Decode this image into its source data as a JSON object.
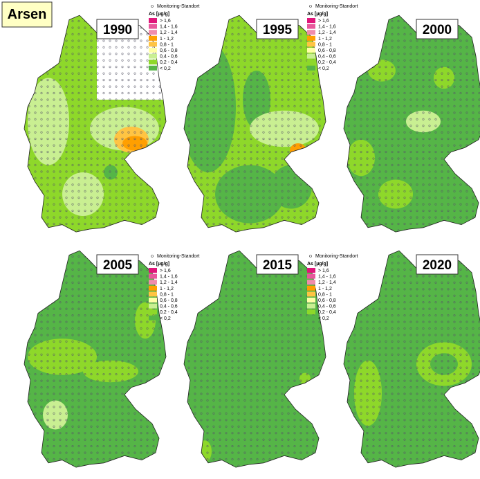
{
  "title": "Arsen",
  "legend": {
    "station": "Monitoring-Standort",
    "unit": "As [µg/g]",
    "classes": [
      {
        "label": "> 1,6",
        "color": "#e0157a"
      },
      {
        "label": "1,4 - 1,6",
        "color": "#e8579c"
      },
      {
        "label": "1,2 - 1,4",
        "color": "#f08cab"
      },
      {
        "label": "1 - 1,2",
        "color": "#ff9f00"
      },
      {
        "label": "0,8 - 1",
        "color": "#ffc443"
      },
      {
        "label": "0,6 - 0,8",
        "color": "#ffffa6"
      },
      {
        "label": "0,4 - 0,6",
        "color": "#c9ef92"
      },
      {
        "label": "0,2 - 0,4",
        "color": "#8ed82a"
      },
      {
        "label": "< 0,2",
        "color": "#55b547"
      }
    ]
  },
  "panels": [
    {
      "year": "1990"
    },
    {
      "year": "1995"
    },
    {
      "year": "2000"
    },
    {
      "year": "2005"
    },
    {
      "year": "2015"
    },
    {
      "year": "2020"
    }
  ]
}
